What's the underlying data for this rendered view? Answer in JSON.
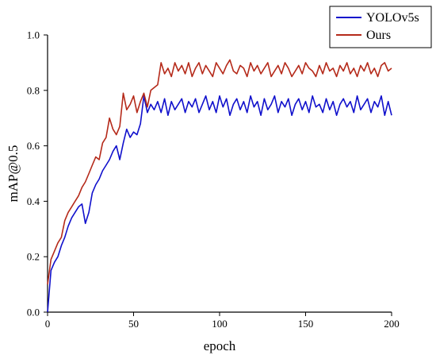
{
  "chart_data": {
    "type": "line",
    "title": "",
    "xlabel": "epoch",
    "ylabel": "mAP@0.5",
    "xlim": [
      0,
      200
    ],
    "ylim": [
      0,
      1.0
    ],
    "x_ticks": [
      0,
      50,
      100,
      150,
      200
    ],
    "y_ticks": [
      "0.0",
      "0.2",
      "0.4",
      "0.6",
      "0.8",
      "1.0"
    ],
    "grid": false,
    "legend_position": "top-right",
    "series": [
      {
        "name": "YOLOv5s",
        "color": "#1010cc",
        "x": [
          0,
          2,
          4,
          6,
          8,
          10,
          12,
          14,
          16,
          18,
          20,
          22,
          24,
          26,
          28,
          30,
          32,
          34,
          36,
          38,
          40,
          42,
          44,
          46,
          48,
          50,
          52,
          54,
          56,
          58,
          60,
          62,
          64,
          66,
          68,
          70,
          72,
          74,
          76,
          78,
          80,
          82,
          84,
          86,
          88,
          90,
          92,
          94,
          96,
          98,
          100,
          102,
          104,
          106,
          108,
          110,
          112,
          114,
          116,
          118,
          120,
          122,
          124,
          126,
          128,
          130,
          132,
          134,
          136,
          138,
          140,
          142,
          144,
          146,
          148,
          150,
          152,
          154,
          156,
          158,
          160,
          162,
          164,
          166,
          168,
          170,
          172,
          174,
          176,
          178,
          180,
          182,
          184,
          186,
          188,
          190,
          192,
          194,
          196,
          198,
          200
        ],
        "values": [
          0.0,
          0.15,
          0.18,
          0.2,
          0.24,
          0.27,
          0.31,
          0.34,
          0.36,
          0.38,
          0.39,
          0.32,
          0.36,
          0.43,
          0.46,
          0.48,
          0.51,
          0.53,
          0.55,
          0.58,
          0.6,
          0.55,
          0.61,
          0.66,
          0.63,
          0.65,
          0.64,
          0.68,
          0.78,
          0.72,
          0.75,
          0.73,
          0.76,
          0.72,
          0.77,
          0.71,
          0.76,
          0.73,
          0.75,
          0.77,
          0.72,
          0.76,
          0.74,
          0.77,
          0.72,
          0.75,
          0.78,
          0.73,
          0.76,
          0.72,
          0.78,
          0.74,
          0.77,
          0.71,
          0.75,
          0.77,
          0.73,
          0.76,
          0.72,
          0.78,
          0.74,
          0.76,
          0.71,
          0.77,
          0.73,
          0.75,
          0.78,
          0.72,
          0.76,
          0.74,
          0.77,
          0.71,
          0.75,
          0.77,
          0.73,
          0.76,
          0.72,
          0.78,
          0.74,
          0.75,
          0.72,
          0.77,
          0.73,
          0.76,
          0.71,
          0.75,
          0.77,
          0.74,
          0.76,
          0.72,
          0.78,
          0.73,
          0.75,
          0.77,
          0.72,
          0.76,
          0.74,
          0.78,
          0.71,
          0.76,
          0.71
        ]
      },
      {
        "name": "Ours",
        "color": "#b52a1a",
        "x": [
          0,
          2,
          4,
          6,
          8,
          10,
          12,
          14,
          16,
          18,
          20,
          22,
          24,
          26,
          28,
          30,
          32,
          34,
          36,
          38,
          40,
          42,
          44,
          46,
          48,
          50,
          52,
          54,
          56,
          58,
          60,
          62,
          64,
          66,
          68,
          70,
          72,
          74,
          76,
          78,
          80,
          82,
          84,
          86,
          88,
          90,
          92,
          94,
          96,
          98,
          100,
          102,
          104,
          106,
          108,
          110,
          112,
          114,
          116,
          118,
          120,
          122,
          124,
          126,
          128,
          130,
          132,
          134,
          136,
          138,
          140,
          142,
          144,
          146,
          148,
          150,
          152,
          154,
          156,
          158,
          160,
          162,
          164,
          166,
          168,
          170,
          172,
          174,
          176,
          178,
          180,
          182,
          184,
          186,
          188,
          190,
          192,
          194,
          196,
          198,
          200
        ],
        "values": [
          0.1,
          0.19,
          0.22,
          0.25,
          0.27,
          0.33,
          0.36,
          0.38,
          0.4,
          0.42,
          0.45,
          0.47,
          0.5,
          0.53,
          0.56,
          0.55,
          0.61,
          0.63,
          0.7,
          0.66,
          0.64,
          0.67,
          0.79,
          0.73,
          0.75,
          0.78,
          0.72,
          0.76,
          0.79,
          0.74,
          0.8,
          0.81,
          0.82,
          0.9,
          0.86,
          0.88,
          0.85,
          0.9,
          0.87,
          0.89,
          0.86,
          0.9,
          0.85,
          0.88,
          0.9,
          0.86,
          0.89,
          0.87,
          0.85,
          0.9,
          0.88,
          0.86,
          0.89,
          0.91,
          0.87,
          0.86,
          0.89,
          0.88,
          0.85,
          0.9,
          0.87,
          0.89,
          0.86,
          0.88,
          0.9,
          0.85,
          0.87,
          0.89,
          0.86,
          0.9,
          0.88,
          0.85,
          0.87,
          0.89,
          0.86,
          0.9,
          0.88,
          0.87,
          0.85,
          0.89,
          0.86,
          0.9,
          0.87,
          0.88,
          0.85,
          0.89,
          0.87,
          0.9,
          0.86,
          0.88,
          0.85,
          0.89,
          0.87,
          0.9,
          0.86,
          0.88,
          0.85,
          0.89,
          0.9,
          0.87,
          0.88
        ]
      }
    ]
  }
}
